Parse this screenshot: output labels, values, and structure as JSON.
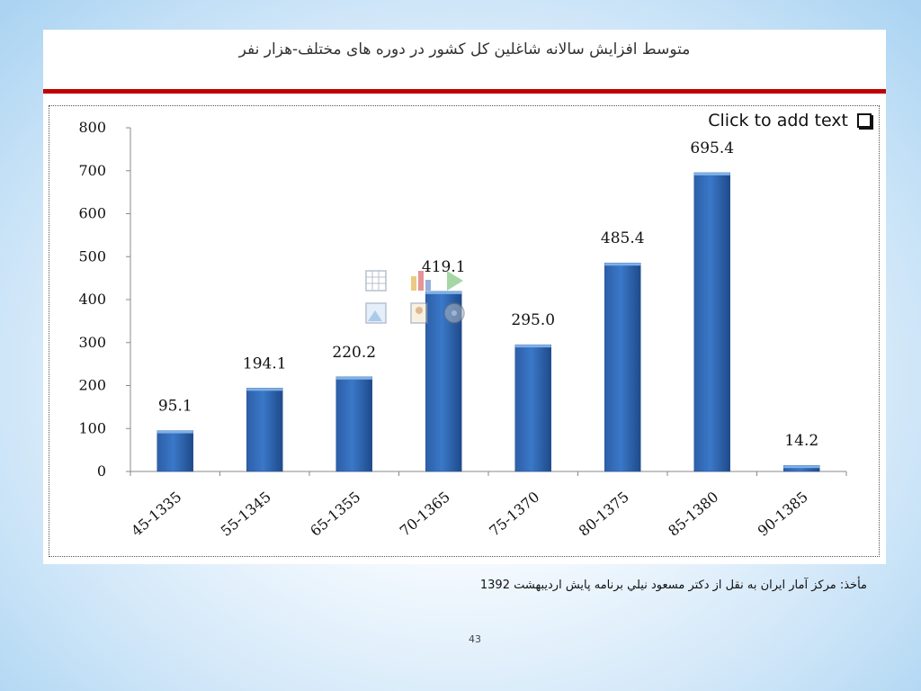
{
  "slide": {
    "title": "متوسط افزایش سالانه شاغلین کل کشور در دوره های مختلف-هزار نفر",
    "placeholder_text": "Click to add text",
    "source": "مأخذ: مرکز آمار ایران به نقل از دکتر مسعود نیلي برنامه پایش اردیبهشت 1392",
    "page_number": "43"
  },
  "colors": {
    "bar": "#3a78c8",
    "title_rule": "#c00000"
  },
  "chart_data": {
    "type": "bar",
    "title": "متوسط افزایش سالانه شاغلین کل کشور در دوره های مختلف-هزار نفر",
    "categories": [
      "45-1335",
      "55-1345",
      "65-1355",
      "70-1365",
      "75-1370",
      "80-1375",
      "85-1380",
      "90-1385"
    ],
    "values": [
      95.1,
      194.1,
      220.2,
      419.1,
      295.0,
      485.4,
      695.4,
      14.2
    ],
    "data_labels": [
      "95.1",
      "194.1",
      "220.2",
      "419.1",
      "295.0",
      "485.4",
      "695.4",
      "14.2"
    ],
    "yticks": [
      "0",
      "100",
      "200",
      "300",
      "400",
      "500",
      "600",
      "700",
      "800"
    ],
    "ylim": [
      0,
      800
    ],
    "xlabel": "",
    "ylabel": "",
    "grid": false,
    "legend": "none"
  }
}
